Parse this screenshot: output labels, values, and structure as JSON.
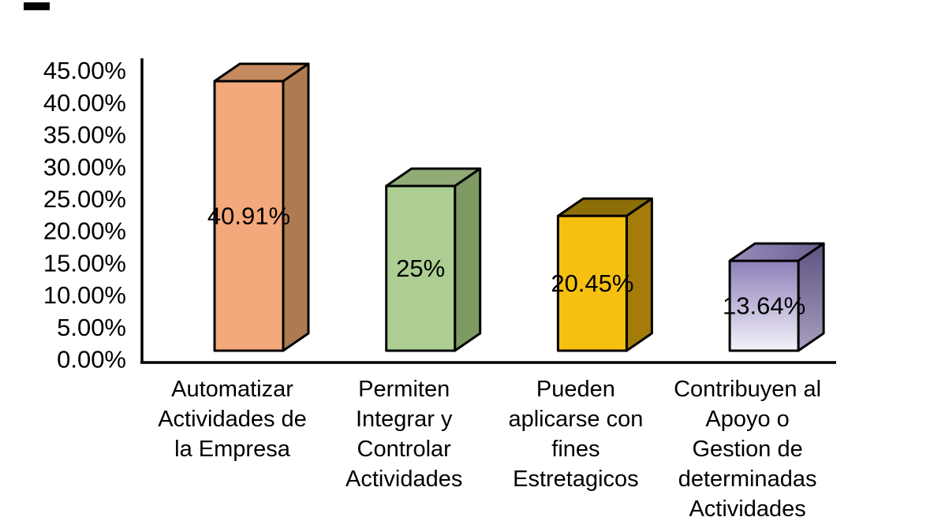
{
  "page": {
    "background": "#ffffff"
  },
  "chart_data": {
    "type": "bar",
    "style": "3d-column",
    "title": "",
    "xlabel": "",
    "ylabel": "",
    "grid": false,
    "legend": false,
    "ylim": [
      0,
      45
    ],
    "y_tick_step": 5,
    "y_tick_labels": [
      "0.00%",
      "5.00%",
      "10.00%",
      "15.00%",
      "20.00%",
      "25.00%",
      "30.00%",
      "35.00%",
      "40.00%",
      "45.00%"
    ],
    "categories": [
      "Automatizar Actividades de la Empresa",
      "Permiten Integrar y Controlar Actividades",
      "Pueden aplicarse con fines Estretagicos",
      "Contribuyen al Apoyo o Gestion de determinadas Actividades"
    ],
    "category_lines": [
      [
        "Automatizar",
        "Actividades de",
        "la Empresa"
      ],
      [
        "Permiten",
        "Integrar y",
        "Controlar",
        "Actividades"
      ],
      [
        "Pueden",
        "aplicarse con",
        "fines",
        "Estretagicos"
      ],
      [
        "Contribuyen al",
        "Apoyo o",
        "Gestion de",
        "determinadas",
        "Actividades"
      ]
    ],
    "values": [
      40.91,
      25,
      20.45,
      13.64
    ],
    "value_labels": [
      "40.91%",
      "25%",
      "20.45%",
      "13.64%"
    ],
    "bar_colors": [
      {
        "front": "#F4A97C",
        "top": "#C38A5F",
        "side": "#AE7B51"
      },
      {
        "front": "#ACCE92",
        "top": "#92AB76",
        "side": "#7E9A62"
      },
      {
        "front": "#F6C011",
        "top": "#8D6F08",
        "side": "#A37C0A"
      },
      {
        "front": [
          "#8E7FB8",
          "#F4F2FA"
        ],
        "top": [
          "#9A8DBD",
          "#6A5F8E"
        ],
        "side": [
          "#5E5280",
          "#A89FBE"
        ]
      }
    ],
    "axis_color": "#000000",
    "label_color": "#000000"
  }
}
